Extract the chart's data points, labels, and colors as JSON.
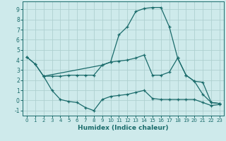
{
  "xlabel": "Humidex (Indice chaleur)",
  "background_color": "#ceeaeb",
  "grid_color": "#aed0d0",
  "line_color": "#1a6b6b",
  "xlim": [
    -0.5,
    23.5
  ],
  "ylim": [
    -1.5,
    9.8
  ],
  "xticks": [
    0,
    1,
    2,
    3,
    4,
    5,
    6,
    7,
    8,
    9,
    10,
    11,
    12,
    13,
    14,
    15,
    16,
    17,
    18,
    19,
    20,
    21,
    22,
    23
  ],
  "yticks": [
    -1,
    0,
    1,
    2,
    3,
    4,
    5,
    6,
    7,
    8,
    9
  ],
  "series": [
    {
      "x": [
        0,
        1,
        2,
        9,
        10,
        11,
        12,
        13,
        14,
        15,
        16,
        17,
        18,
        19,
        20,
        21,
        22,
        23
      ],
      "y": [
        4.3,
        3.6,
        2.4,
        3.5,
        3.8,
        6.5,
        7.3,
        8.8,
        9.1,
        9.2,
        9.2,
        7.3,
        4.2,
        2.5,
        1.9,
        0.6,
        -0.2,
        -0.3
      ]
    },
    {
      "x": [
        0,
        1,
        2,
        3,
        4,
        5,
        6,
        7,
        8,
        9,
        10,
        11,
        12,
        13,
        14,
        15,
        16,
        17,
        18,
        19,
        20,
        21,
        22,
        23
      ],
      "y": [
        4.3,
        3.6,
        2.4,
        2.4,
        2.4,
        2.5,
        2.5,
        2.5,
        2.5,
        3.5,
        3.8,
        3.9,
        4.0,
        4.2,
        4.5,
        2.5,
        2.5,
        2.8,
        4.2,
        2.5,
        1.9,
        1.8,
        -0.2,
        -0.3
      ]
    },
    {
      "x": [
        2,
        3,
        4,
        5,
        6,
        7,
        8,
        9,
        10,
        11,
        12,
        13,
        14,
        15,
        16,
        17,
        18,
        19,
        20,
        21,
        22,
        23
      ],
      "y": [
        2.4,
        1.0,
        0.1,
        -0.1,
        -0.2,
        -0.7,
        -1.0,
        0.1,
        0.4,
        0.5,
        0.6,
        0.8,
        1.0,
        0.2,
        0.1,
        0.1,
        0.1,
        0.1,
        0.1,
        -0.2,
        -0.5,
        -0.4
      ]
    }
  ]
}
